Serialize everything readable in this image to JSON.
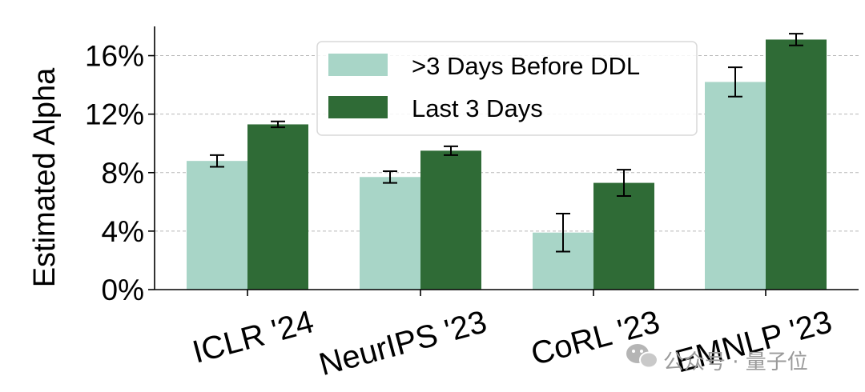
{
  "chart_data": {
    "type": "bar",
    "categories": [
      "ICLR '24",
      "NeurIPS '23",
      "CoRL '23",
      "EMNLP '23"
    ],
    "series": [
      {
        "name": ">3 Days Before DDL",
        "color": "#a8d5c7",
        "values": [
          8.8,
          7.7,
          3.9,
          14.2
        ],
        "error": [
          0.4,
          0.4,
          1.3,
          1.0
        ]
      },
      {
        "name": "Last 3 Days",
        "color": "#2f6b36",
        "values": [
          11.3,
          9.5,
          7.3,
          17.1
        ],
        "error": [
          0.2,
          0.3,
          0.9,
          0.4
        ]
      }
    ],
    "ylabel": "Estimated Alpha",
    "xlabel": "",
    "ylim": [
      0,
      18
    ],
    "yticks": [
      0,
      4,
      8,
      12,
      16
    ],
    "ytick_labels": [
      "0%",
      "4%",
      "8%",
      "12%",
      "16%"
    ],
    "grid": "horizontal dashed",
    "legend_position": "top-center"
  },
  "watermark": {
    "icon": "wechat-icon",
    "text": "公众号 · 量子位"
  }
}
